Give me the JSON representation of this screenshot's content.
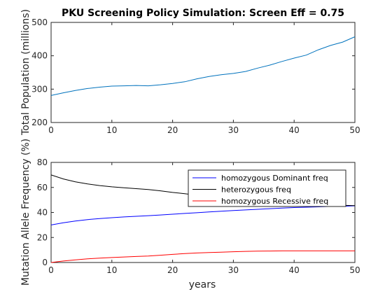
{
  "chart_data": [
    {
      "type": "line",
      "title": "PKU Screening Policy Simulation: Screen Eff = 0.75",
      "xlabel": "",
      "ylabel": "Total Population (millions)",
      "xlim": [
        0,
        50
      ],
      "ylim": [
        200,
        500
      ],
      "xticks": [
        "0",
        "10",
        "20",
        "30",
        "40",
        "50"
      ],
      "yticks": [
        "200",
        "300",
        "400",
        "500"
      ],
      "grid": false,
      "series": [
        {
          "color": "#0072BD",
          "x": [
            0,
            2,
            4,
            6,
            8,
            10,
            12,
            14,
            16,
            18,
            20,
            22,
            24,
            26,
            28,
            30,
            32,
            34,
            36,
            38,
            40,
            42,
            44,
            46,
            48,
            50
          ],
          "y": [
            281,
            289,
            296,
            302,
            306,
            309,
            310,
            311,
            310,
            313,
            317,
            322,
            331,
            338,
            343,
            347,
            353,
            363,
            372,
            383,
            393,
            402,
            418,
            431,
            441,
            457
          ]
        }
      ]
    },
    {
      "type": "line",
      "title": "",
      "xlabel": "years",
      "ylabel": "Mutation Allele Frequency (%)",
      "xlim": [
        0,
        50
      ],
      "ylim": [
        0,
        80
      ],
      "xticks": [
        "0",
        "10",
        "20",
        "30",
        "40",
        "50"
      ],
      "yticks": [
        "0",
        "20",
        "40",
        "60",
        "80"
      ],
      "grid": false,
      "legend": "top-right",
      "series": [
        {
          "name": "homozygous Dominant freq",
          "color": "#0000ff",
          "x": [
            0,
            2,
            4,
            6,
            8,
            10,
            12,
            14,
            16,
            18,
            20,
            22,
            24,
            26,
            28,
            30,
            32,
            34,
            36,
            38,
            40,
            42,
            44,
            46,
            48,
            50
          ],
          "y": [
            30,
            31.8,
            33.2,
            34.3,
            35.1,
            35.8,
            36.4,
            36.9,
            37.4,
            38.0,
            38.6,
            39.2,
            39.8,
            40.4,
            41.0,
            41.5,
            42.0,
            42.5,
            43.0,
            43.5,
            43.9,
            44.2,
            44.5,
            44.8,
            45.0,
            45.3
          ]
        },
        {
          "name": "heterozygous freq",
          "color": "#000000",
          "x": [
            0,
            2,
            4,
            6,
            8,
            10,
            12,
            14,
            16,
            18,
            20,
            22,
            24,
            26,
            28,
            30,
            32,
            34,
            36,
            38,
            40,
            42,
            44,
            46,
            48,
            50
          ],
          "y": [
            70,
            66.8,
            64.5,
            62.8,
            61.5,
            60.5,
            59.7,
            59.0,
            58.3,
            57.3,
            56.0,
            55.0,
            53.8,
            52.6,
            51.5,
            50.5,
            49.6,
            48.8,
            48.0,
            47.4,
            46.9,
            46.5,
            46.2,
            45.9,
            45.7,
            45.5
          ]
        },
        {
          "name": "homozygous Recessive freq",
          "color": "#ff0000",
          "x": [
            0,
            2,
            4,
            6,
            8,
            10,
            12,
            14,
            16,
            18,
            20,
            22,
            24,
            26,
            28,
            30,
            32,
            34,
            36,
            38,
            40,
            42,
            44,
            46,
            48,
            50
          ],
          "y": [
            0,
            1.2,
            2.1,
            2.9,
            3.5,
            4.0,
            4.4,
            4.8,
            5.2,
            5.8,
            6.5,
            7.1,
            7.6,
            8.0,
            8.3,
            8.6,
            8.9,
            9.1,
            9.2,
            9.3,
            9.3,
            9.3,
            9.3,
            9.3,
            9.3,
            9.3
          ]
        }
      ]
    }
  ]
}
